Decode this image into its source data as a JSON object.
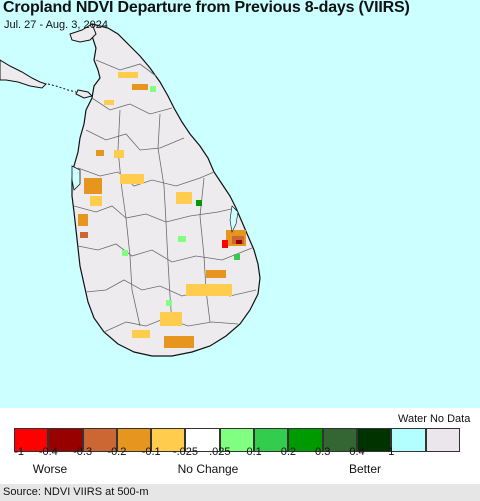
{
  "title": "Cropland NDVI Departure from Previous 8-days (VIIRS)",
  "subtitle": "Jul. 27 - Aug. 3, 2024",
  "colors": {
    "water": "#ccffff",
    "land": "#eeebee",
    "coast": "#111111",
    "district_border": "#6b6b6b"
  },
  "legend": {
    "water_no_data_label": "Water No Data",
    "colors": [
      "#ff0000",
      "#990000",
      "#cc6633",
      "#e6961e",
      "#ffcc4d",
      "#ffffff",
      "#80ff80",
      "#33cc4d",
      "#009900",
      "#336633",
      "#003300",
      "#b3ffff",
      "#ebe6eb"
    ],
    "ticks": [
      "-1",
      "-0.4",
      "-0.3",
      "-0.2",
      "-0.1",
      "-.025",
      ".025",
      "0.1",
      "0.2",
      "0.3",
      "0.4",
      "1"
    ],
    "categories": {
      "worse": "Worse",
      "no_change": "No Change",
      "better": "Better"
    }
  },
  "footer": {
    "source": "Source: NDVI VIIRS at 500-m"
  }
}
